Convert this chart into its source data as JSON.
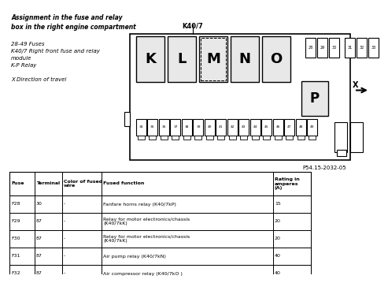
{
  "title_text": "Assignment in the fuse and relay\nbox in the right engine compartment",
  "subtitle_lines": [
    "28-49 Fuses",
    "K40/7 Right front fuse and relay",
    "module",
    "K-P Relay",
    "",
    "X Direction of travel"
  ],
  "label_k40": "K40/7",
  "relay_labels": [
    "K",
    "L",
    "M",
    "N",
    "O"
  ],
  "relay_label_P": "P",
  "fuse_numbers_top": [
    "28",
    "29",
    "30",
    "31",
    "32",
    "33"
  ],
  "fuse_numbers_bottom": [
    "34",
    "35",
    "36",
    "37",
    "38",
    "39",
    "40",
    "41",
    "42",
    "43",
    "44",
    "45",
    "46",
    "47",
    "48",
    "49"
  ],
  "direction_label": "X",
  "part_number": "P54.15-2032-05",
  "table_headers": [
    "Fuse",
    "Terminal",
    "Color of fused\nwire",
    "Fused function",
    "Rating in\namperes\n(A)"
  ],
  "table_rows": [
    [
      "F28",
      "30",
      "-",
      "Fanfare horns relay (K40/7kP)",
      "15"
    ],
    [
      "F29",
      "87",
      "-",
      "Relay for motor electronics/chassis\n(K40/7kK)",
      "20"
    ],
    [
      "F30",
      "87",
      "-",
      "Relay for motor electronics/chassis\n(K40/7kK)",
      "20"
    ],
    [
      "F31",
      "87",
      "-",
      "Air pump relay (K40/7kN)",
      "40"
    ],
    [
      "F32",
      "87",
      "-",
      "Air compressor relay (K40/7kO )",
      "40"
    ]
  ],
  "bg_color": "#ffffff",
  "box_color": "#000000",
  "relay_bg": "#e8e8e8",
  "fuse_bg": "#ffffff"
}
